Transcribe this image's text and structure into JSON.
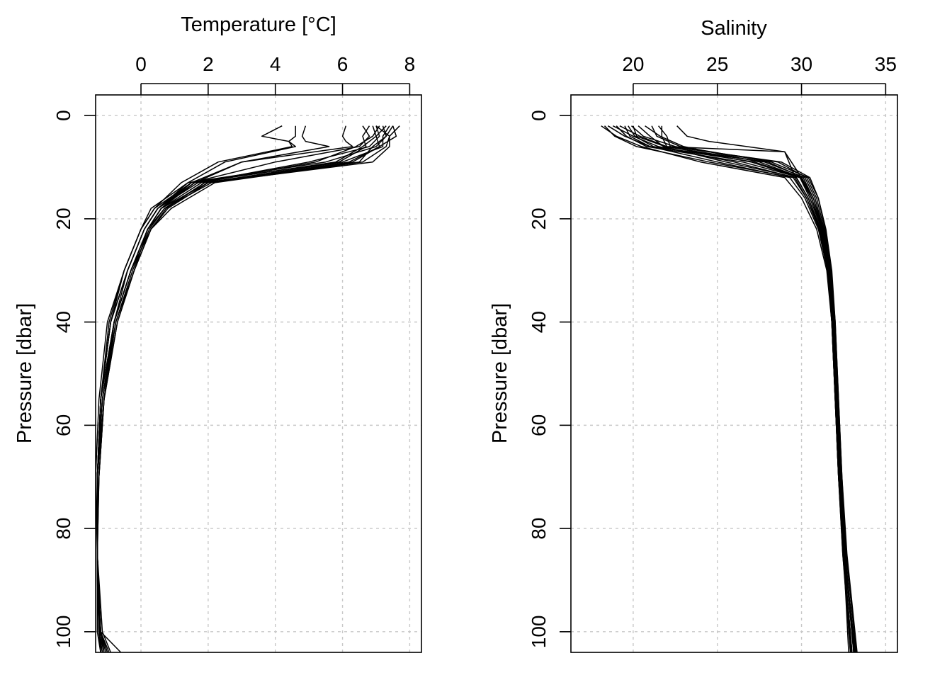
{
  "chart_data": [
    {
      "type": "line",
      "xlabel": "Temperature [°C]",
      "ylabel": "Pressure [dbar]",
      "x_axis_position": "top",
      "y_reversed": true,
      "xlim": [
        -1.35,
        8.35
      ],
      "ylim": [
        -4,
        104
      ],
      "x_ticks": [
        "0",
        "2",
        "4",
        "6",
        "8"
      ],
      "y_ticks": [
        "0",
        "20",
        "40",
        "60",
        "80",
        "100"
      ],
      "grid": true,
      "series": [
        {
          "x": [
            4.2,
            3.6,
            4.4,
            4.6,
            2.5,
            1.4,
            0.5,
            0.1,
            -0.4,
            -0.8,
            -1.1,
            -1.25,
            -1.3,
            -1.3,
            -1.25,
            -1.2
          ],
          "y": [
            2,
            4,
            5,
            6,
            9,
            13,
            18,
            22,
            30,
            40,
            55,
            70,
            80,
            90,
            100,
            104
          ]
        },
        {
          "x": [
            4.6,
            4.6,
            4.4,
            4.5,
            2.3,
            1.2,
            0.4,
            0.0,
            -0.5,
            -0.9,
            -1.2,
            -1.3,
            -1.3,
            -1.25,
            -1.2
          ],
          "y": [
            2,
            4,
            5,
            6,
            9,
            13,
            18,
            22,
            30,
            40,
            55,
            70,
            85,
            100,
            104
          ]
        },
        {
          "x": [
            4.9,
            4.8,
            4.9,
            5.6,
            3.0,
            1.6,
            0.6,
            0.2,
            -0.3,
            -0.8,
            -1.1,
            -1.25,
            -1.3,
            -1.3,
            -1.2
          ],
          "y": [
            2,
            4,
            5,
            6,
            9,
            13,
            18,
            22,
            30,
            40,
            55,
            70,
            85,
            100,
            104
          ]
        },
        {
          "x": [
            6.1,
            6.0,
            6.1,
            6.3,
            3.0,
            1.5,
            0.5,
            0.1,
            -0.4,
            -0.9,
            -1.2,
            -1.3,
            -1.3,
            -1.2
          ],
          "y": [
            2,
            4,
            5,
            6,
            9,
            13,
            18,
            22,
            30,
            40,
            55,
            70,
            85,
            104
          ]
        },
        {
          "x": [
            6.6,
            6.8,
            6.5,
            4.0,
            1.5,
            0.6,
            0.2,
            -0.3,
            -0.8,
            -1.15,
            -1.3,
            -1.3,
            -1.25,
            -1.15
          ],
          "y": [
            2,
            4,
            6,
            9,
            13,
            18,
            22,
            30,
            40,
            55,
            70,
            85,
            100,
            104
          ]
        },
        {
          "x": [
            7.0,
            7.1,
            6.8,
            5.0,
            1.7,
            0.5,
            0.1,
            -0.4,
            -0.9,
            -1.2,
            -1.3,
            -1.3,
            -1.2,
            -1.1
          ],
          "y": [
            2,
            4,
            6,
            9,
            13,
            18,
            22,
            30,
            40,
            55,
            70,
            85,
            100,
            104
          ]
        },
        {
          "x": [
            7.2,
            7.3,
            7.0,
            5.5,
            1.4,
            0.3,
            0.0,
            -0.5,
            -1.0,
            -1.25,
            -1.35,
            -1.3,
            -1.2,
            -1.05
          ],
          "y": [
            2,
            4,
            6,
            9,
            13,
            18,
            22,
            30,
            40,
            55,
            70,
            85,
            100,
            104
          ]
        },
        {
          "x": [
            7.4,
            7.2,
            7.2,
            6.0,
            1.9,
            0.7,
            0.2,
            -0.2,
            -0.7,
            -1.1,
            -1.25,
            -1.3,
            -1.25,
            -1.1
          ],
          "y": [
            2,
            4,
            6,
            9,
            13,
            18,
            22,
            30,
            40,
            55,
            70,
            85,
            100,
            104
          ]
        },
        {
          "x": [
            7.5,
            7.6,
            7.1,
            6.3,
            2.0,
            0.8,
            0.3,
            -0.3,
            -0.8,
            -1.15,
            -1.3,
            -1.3,
            -1.2,
            -1.0
          ],
          "y": [
            2,
            4,
            6,
            9,
            13,
            18,
            22,
            30,
            40,
            55,
            70,
            85,
            100,
            104
          ]
        },
        {
          "x": [
            7.7,
            7.4,
            7.3,
            6.6,
            2.2,
            0.9,
            0.3,
            -0.2,
            -0.7,
            -1.1,
            -1.3,
            -1.3,
            -1.15,
            -0.9
          ],
          "y": [
            2,
            4,
            6,
            9,
            13,
            18,
            22,
            30,
            40,
            55,
            70,
            85,
            100,
            104
          ]
        },
        {
          "x": [
            6.9,
            7.0,
            6.6,
            5.8,
            1.6,
            0.5,
            0.1,
            -0.4,
            -0.9,
            -1.2,
            -1.3,
            -1.3,
            -1.25,
            -1.15
          ],
          "y": [
            2,
            4,
            6,
            9,
            13,
            18,
            22,
            30,
            40,
            55,
            70,
            85,
            100,
            104
          ]
        },
        {
          "x": [
            7.1,
            6.9,
            6.4,
            5.2,
            1.8,
            0.6,
            0.2,
            -0.3,
            -0.8,
            -1.2,
            -1.3,
            -1.3,
            -1.2,
            -1.1
          ],
          "y": [
            2,
            4,
            6,
            9,
            13,
            18,
            22,
            30,
            40,
            55,
            70,
            85,
            100,
            104
          ]
        },
        {
          "x": [
            6.8,
            6.6,
            6.7,
            5.9,
            1.5,
            0.4,
            0.0,
            -0.5,
            -0.95,
            -1.2,
            -1.3,
            -1.3,
            -1.2,
            -0.95
          ],
          "y": [
            2,
            4,
            6,
            9,
            13,
            18,
            22,
            30,
            40,
            55,
            70,
            85,
            100,
            104
          ]
        },
        {
          "x": [
            7.3,
            7.0,
            7.1,
            6.2,
            2.1,
            0.7,
            0.25,
            -0.25,
            -0.75,
            -1.15,
            -1.3,
            -1.3,
            -1.25,
            -1.2
          ],
          "y": [
            2,
            4,
            6,
            9,
            13,
            18,
            22,
            30,
            40,
            55,
            70,
            85,
            100,
            104
          ]
        },
        {
          "x": [
            7.0,
            7.4,
            7.4,
            6.9,
            2.0,
            0.6,
            0.2,
            -0.3,
            -0.8,
            -1.2,
            -1.3,
            -1.3,
            -1.2,
            -0.6
          ],
          "y": [
            2,
            4,
            6,
            9,
            13,
            18,
            22,
            30,
            40,
            55,
            70,
            85,
            100,
            104
          ]
        },
        {
          "x": [
            7.5,
            7.3,
            6.9,
            6.5,
            1.9,
            0.75,
            0.3,
            -0.2,
            -0.75,
            -1.1,
            -1.3,
            -1.3,
            -1.2,
            -1.0
          ],
          "y": [
            2,
            4,
            6,
            9,
            13,
            18,
            22,
            30,
            40,
            55,
            70,
            85,
            100,
            104
          ]
        }
      ]
    },
    {
      "type": "line",
      "xlabel": "Salinity",
      "ylabel": "Pressure [dbar]",
      "x_axis_position": "top",
      "y_reversed": true,
      "xlim": [
        16.3,
        35.7
      ],
      "ylim": [
        -4,
        104
      ],
      "x_ticks": [
        "20",
        "25",
        "30",
        "35"
      ],
      "y_ticks": [
        "0",
        "20",
        "40",
        "60",
        "80",
        "100"
      ],
      "grid": true,
      "series": [
        {
          "x": [
            21.7,
            21.7,
            22.0,
            29.0,
            29.8,
            30.6,
            31.2,
            31.6,
            31.8,
            32.0,
            32.2,
            32.5,
            32.8
          ],
          "y": [
            2,
            4,
            6,
            7,
            11,
            16,
            22,
            30,
            40,
            55,
            70,
            85,
            104
          ]
        },
        {
          "x": [
            22.6,
            23.2,
            24.5,
            29.0,
            29.5,
            30.4,
            31.1,
            31.6,
            31.85,
            32.05,
            32.25,
            32.5,
            32.9
          ],
          "y": [
            2,
            4,
            5,
            7,
            11,
            16,
            22,
            30,
            40,
            55,
            70,
            85,
            104
          ]
        },
        {
          "x": [
            18.1,
            19.0,
            20.5,
            24.0,
            29.0,
            30.0,
            30.9,
            31.5,
            31.8,
            32.0,
            32.2,
            32.45,
            32.9
          ],
          "y": [
            2,
            4,
            6,
            9,
            12,
            16,
            22,
            30,
            40,
            55,
            70,
            85,
            104
          ]
        },
        {
          "x": [
            18.5,
            19.5,
            21.0,
            25.0,
            29.3,
            30.2,
            31.0,
            31.55,
            31.8,
            32.0,
            32.2,
            32.5,
            33.0
          ],
          "y": [
            2,
            4,
            6,
            9,
            12,
            16,
            22,
            30,
            40,
            55,
            70,
            85,
            104
          ]
        },
        {
          "x": [
            18.8,
            20.0,
            21.5,
            26.0,
            29.6,
            30.3,
            31.1,
            31.6,
            31.85,
            32.05,
            32.25,
            32.5,
            33.0
          ],
          "y": [
            2,
            4,
            6,
            9,
            12,
            16,
            22,
            30,
            40,
            55,
            70,
            85,
            104
          ]
        },
        {
          "x": [
            19.2,
            20.4,
            22.0,
            27.0,
            29.9,
            30.5,
            31.2,
            31.65,
            31.9,
            32.1,
            32.3,
            32.55,
            33.1
          ],
          "y": [
            2,
            4,
            6,
            9,
            12,
            16,
            22,
            30,
            40,
            55,
            70,
            85,
            104
          ]
        },
        {
          "x": [
            19.5,
            19.8,
            21.0,
            28.0,
            30.1,
            30.7,
            31.3,
            31.7,
            31.9,
            32.1,
            32.3,
            32.6,
            33.1
          ],
          "y": [
            2,
            4,
            6,
            9,
            12,
            16,
            22,
            30,
            40,
            55,
            70,
            85,
            104
          ]
        },
        {
          "x": [
            19.9,
            20.6,
            22.5,
            28.6,
            30.3,
            30.9,
            31.35,
            31.7,
            31.95,
            32.15,
            32.35,
            32.6,
            33.15
          ],
          "y": [
            2,
            4,
            6,
            9,
            12,
            16,
            22,
            30,
            40,
            55,
            70,
            85,
            104
          ]
        },
        {
          "x": [
            20.3,
            21.0,
            21.8,
            25.5,
            29.7,
            30.4,
            31.15,
            31.6,
            31.85,
            32.05,
            32.25,
            32.5,
            33.2
          ],
          "y": [
            2,
            4,
            6,
            9,
            12,
            16,
            22,
            30,
            40,
            55,
            70,
            85,
            104
          ]
        },
        {
          "x": [
            20.7,
            21.6,
            23.0,
            27.5,
            30.0,
            30.6,
            31.25,
            31.65,
            31.9,
            32.1,
            32.3,
            32.55,
            33.2
          ],
          "y": [
            2,
            4,
            6,
            9,
            12,
            16,
            22,
            30,
            40,
            55,
            70,
            85,
            104
          ]
        },
        {
          "x": [
            21.1,
            21.4,
            22.8,
            28.2,
            30.4,
            31.0,
            31.4,
            31.75,
            32.0,
            32.2,
            32.4,
            32.65,
            33.25
          ],
          "y": [
            2,
            4,
            6,
            9,
            12,
            16,
            22,
            30,
            40,
            55,
            70,
            85,
            104
          ]
        },
        {
          "x": [
            19.0,
            19.6,
            20.8,
            26.5,
            29.9,
            30.6,
            31.2,
            31.6,
            31.85,
            32.05,
            32.25,
            32.5,
            33.0
          ],
          "y": [
            2,
            4,
            6,
            9,
            12,
            16,
            22,
            30,
            40,
            55,
            70,
            85,
            104
          ]
        },
        {
          "x": [
            20.0,
            20.2,
            21.9,
            27.8,
            30.2,
            30.8,
            31.3,
            31.7,
            31.95,
            32.15,
            32.35,
            32.6,
            33.1
          ],
          "y": [
            2,
            4,
            6,
            9,
            12,
            16,
            22,
            30,
            40,
            55,
            70,
            85,
            104
          ]
        },
        {
          "x": [
            21.5,
            22.0,
            22.2,
            28.8,
            30.5,
            31.0,
            31.45,
            31.8,
            32.0,
            32.2,
            32.4,
            32.7,
            33.3
          ],
          "y": [
            2,
            4,
            6,
            9,
            12,
            16,
            22,
            30,
            40,
            55,
            70,
            85,
            104
          ]
        },
        {
          "x": [
            18.3,
            18.9,
            20.2,
            24.5,
            29.5,
            30.3,
            31.05,
            31.55,
            31.8,
            32.0,
            32.2,
            32.45,
            32.95
          ],
          "y": [
            2,
            4,
            6,
            9,
            12,
            16,
            22,
            30,
            40,
            55,
            70,
            85,
            104
          ]
        },
        {
          "x": [
            19.7,
            20.1,
            21.2,
            27.2,
            30.0,
            30.7,
            31.25,
            31.7,
            31.9,
            32.1,
            32.3,
            32.55,
            33.2
          ],
          "y": [
            2,
            4,
            6,
            9,
            12,
            16,
            22,
            30,
            40,
            55,
            70,
            85,
            104
          ]
        }
      ]
    }
  ]
}
